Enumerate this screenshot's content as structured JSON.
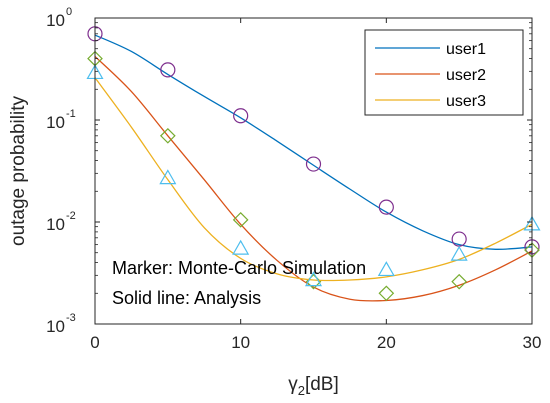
{
  "chart_data": {
    "type": "line",
    "xlabel": {
      "symbol": "γ",
      "subscript": "2",
      "unit": "[dB]"
    },
    "ylabel": "outage probability",
    "xlim": [
      0,
      30
    ],
    "ylim": [
      0.001,
      1
    ],
    "yscale": "log",
    "xticks": [
      "0",
      "10",
      "20",
      "30"
    ],
    "yticks": [
      {
        "value": 1,
        "base": "10",
        "exp": "0"
      },
      {
        "value": 0.1,
        "base": "10",
        "exp": "-1"
      },
      {
        "value": 0.01,
        "base": "10",
        "exp": "-2"
      },
      {
        "value": 0.001,
        "base": "10",
        "exp": "-3"
      }
    ],
    "grid": false,
    "legend_position": "top-right",
    "annotations": [
      "Marker: Monte-Carlo Simulation",
      "Solid line: Analysis"
    ],
    "series": [
      {
        "name": "user1",
        "color": "#0072BD",
        "marker": "circle",
        "marker_color": "#7E2F8E",
        "line": {
          "x": [
            0,
            2.5,
            5,
            7.5,
            10,
            12.5,
            15,
            17.5,
            20,
            22.5,
            25,
            27.5,
            30
          ],
          "y": [
            0.68,
            0.47,
            0.28,
            0.17,
            0.105,
            0.062,
            0.036,
            0.021,
            0.0125,
            0.0082,
            0.006,
            0.0054,
            0.0057
          ]
        },
        "markers": {
          "x": [
            0,
            5,
            10,
            15,
            20,
            25,
            30
          ],
          "y": [
            0.7,
            0.31,
            0.11,
            0.037,
            0.014,
            0.0068,
            0.0057
          ]
        }
      },
      {
        "name": "user2",
        "color": "#D95319",
        "marker": "diamond",
        "marker_color": "#77AC30",
        "line": {
          "x": [
            0,
            2.5,
            5,
            7.5,
            10,
            12.5,
            15,
            17.5,
            20,
            22.5,
            25,
            27.5,
            30
          ],
          "y": [
            0.42,
            0.19,
            0.07,
            0.026,
            0.0095,
            0.0042,
            0.0023,
            0.00175,
            0.0017,
            0.0019,
            0.0024,
            0.0034,
            0.0052
          ]
        },
        "markers": {
          "x": [
            0,
            5,
            10,
            15,
            20,
            25,
            30
          ],
          "y": [
            0.4,
            0.07,
            0.0105,
            0.0026,
            0.002,
            0.0026,
            0.0053
          ]
        }
      },
      {
        "name": "user3",
        "color": "#EDB120",
        "marker": "triangle",
        "marker_color": "#4DBEEE",
        "line": {
          "x": [
            0,
            2.5,
            5,
            7.5,
            10,
            12.5,
            15,
            17.5,
            20,
            22.5,
            25,
            27.5,
            30
          ],
          "y": [
            0.26,
            0.085,
            0.026,
            0.0088,
            0.0044,
            0.0031,
            0.0027,
            0.0027,
            0.0029,
            0.0034,
            0.0043,
            0.0062,
            0.0095
          ]
        },
        "markers": {
          "x": [
            0,
            5,
            10,
            15,
            20,
            25,
            30
          ],
          "y": [
            0.29,
            0.027,
            0.0055,
            0.0027,
            0.0034,
            0.0048,
            0.0095
          ]
        }
      }
    ]
  }
}
